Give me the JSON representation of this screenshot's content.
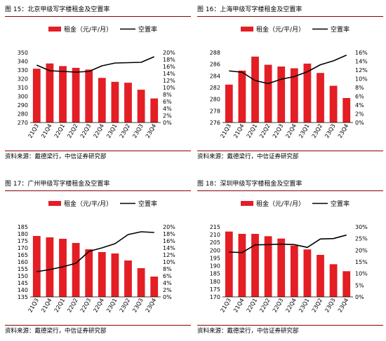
{
  "colors": {
    "bar": "#e31e24",
    "line": "#000000",
    "rule": "#8b0000"
  },
  "panels": [
    {
      "title": "图 15：北京甲级写字楼租金及空置率",
      "source": "资料来源：戴德梁行，中信证券研究部",
      "legend": {
        "bar": "租金（元/平/月）",
        "line": "空置率"
      }
    },
    {
      "title": "图 16：上海甲级写字楼租金及空置率",
      "source": "资料来源：戴德梁行，中信证券研究部",
      "legend": {
        "bar": "租金（元/平/月）",
        "line": "空置率"
      }
    },
    {
      "title": "图 17：广州甲级写字楼租金及空置率",
      "source": "资料来源：戴德梁行，中信证券研究部",
      "legend": {
        "bar": "租金（元/平/月）",
        "line": "空置率"
      }
    },
    {
      "title": "图 18：深圳甲级写字楼租金及空置率",
      "source": "资料来源：戴德梁行，中信证券研究部",
      "legend": {
        "bar": "租金（元/平/月）",
        "line": "空置率"
      }
    }
  ],
  "chart_data": [
    {
      "type": "bar",
      "title": "北京甲级写字楼租金及空置率",
      "categories": [
        "21Q3",
        "21Q4",
        "22Q1",
        "22Q2",
        "22Q3",
        "22Q4",
        "23Q1",
        "23Q2",
        "23Q3",
        "23Q4"
      ],
      "series": [
        {
          "name": "租金（元/平/月）",
          "type": "bar",
          "axis": "left",
          "values": [
            331.5,
            337.5,
            334.5,
            332.5,
            330.5,
            321,
            316.5,
            315.5,
            307.5,
            297.5
          ]
        },
        {
          "name": "空置率",
          "type": "line",
          "axis": "right",
          "values": [
            16.4,
            14.8,
            14.6,
            14.4,
            14.6,
            16.2,
            17.0,
            17.1,
            17.2,
            18.8
          ]
        }
      ],
      "ylim": [
        270,
        350
      ],
      "yticks": [
        270,
        280,
        290,
        300,
        310,
        320,
        330,
        340,
        350
      ],
      "y2lim": [
        0,
        20
      ],
      "y2ticks": [
        "0%",
        "2%",
        "4%",
        "6%",
        "8%",
        "10%",
        "12%",
        "14%",
        "16%",
        "18%",
        "20%"
      ],
      "legend": "top"
    },
    {
      "type": "bar",
      "title": "上海甲级写字楼租金及空置率",
      "categories": [
        "21Q3",
        "21Q4",
        "22Q1",
        "22Q2",
        "22Q3",
        "22Q4",
        "23Q1",
        "23Q2",
        "23Q3",
        "23Q4"
      ],
      "series": [
        {
          "name": "租金（元/平/月）",
          "type": "bar",
          "axis": "left",
          "values": [
            282.5,
            284.9,
            287.3,
            285.9,
            285.6,
            285.3,
            286.1,
            284.5,
            282.3,
            280.2
          ]
        },
        {
          "name": "空置率",
          "type": "line",
          "axis": "right",
          "values": [
            11.8,
            11.5,
            9.6,
            8.9,
            9.9,
            10.5,
            11.6,
            13.2,
            14.1,
            15.4
          ]
        }
      ],
      "ylim": [
        276,
        288
      ],
      "yticks": [
        276,
        278,
        280,
        282,
        284,
        286,
        288
      ],
      "y2lim": [
        0,
        16
      ],
      "y2ticks": [
        "0%",
        "2%",
        "4%",
        "6%",
        "8%",
        "10%",
        "12%",
        "14%",
        "16%"
      ],
      "legend": "top"
    },
    {
      "type": "bar",
      "title": "广州甲级写字楼租金及空置率",
      "categories": [
        "21Q3",
        "21Q4",
        "22Q1",
        "22Q2",
        "22Q3",
        "22Q4",
        "23Q1",
        "23Q2",
        "23Q3",
        "23Q4"
      ],
      "series": [
        {
          "name": "租金（元/平/月）",
          "type": "bar",
          "axis": "left",
          "values": [
            178.5,
            177.5,
            176.5,
            173.5,
            169,
            167,
            166,
            161,
            155.5,
            149.5
          ]
        },
        {
          "name": "空置率",
          "type": "line",
          "axis": "right",
          "values": [
            7.2,
            7.8,
            8.6,
            9.6,
            13.0,
            14.0,
            15.2,
            17.8,
            18.6,
            18.4
          ]
        }
      ],
      "ylim": [
        135,
        185
      ],
      "yticks": [
        135,
        140,
        145,
        150,
        155,
        160,
        165,
        170,
        175,
        180,
        185
      ],
      "y2lim": [
        0,
        20
      ],
      "y2ticks": [
        "0%",
        "2%",
        "4%",
        "6%",
        "8%",
        "10%",
        "12%",
        "14%",
        "16%",
        "18%",
        "20%"
      ],
      "legend": "top"
    },
    {
      "type": "bar",
      "title": "深圳甲级写字楼租金及空置率",
      "categories": [
        "21Q3",
        "21Q4",
        "22Q1",
        "22Q2",
        "22Q3",
        "22Q4",
        "23Q1",
        "23Q2",
        "23Q3",
        "23Q4"
      ],
      "series": [
        {
          "name": "租金（元/平/月）",
          "type": "bar",
          "axis": "left",
          "values": [
            212,
            210.5,
            210.5,
            209,
            207.5,
            203,
            200.5,
            197,
            191,
            186.5
          ]
        },
        {
          "name": "空置率",
          "type": "line",
          "axis": "right",
          "values": [
            19.2,
            19.0,
            22.3,
            22.4,
            22.6,
            22.4,
            21.2,
            24.8,
            25.0,
            26.5
          ]
        }
      ],
      "ylim": [
        170,
        215
      ],
      "yticks": [
        170,
        175,
        180,
        185,
        190,
        195,
        200,
        205,
        210,
        215
      ],
      "y2lim": [
        0,
        30
      ],
      "y2ticks": [
        "0%",
        "5%",
        "10%",
        "15%",
        "20%",
        "25%",
        "30%"
      ],
      "legend": "top"
    }
  ]
}
